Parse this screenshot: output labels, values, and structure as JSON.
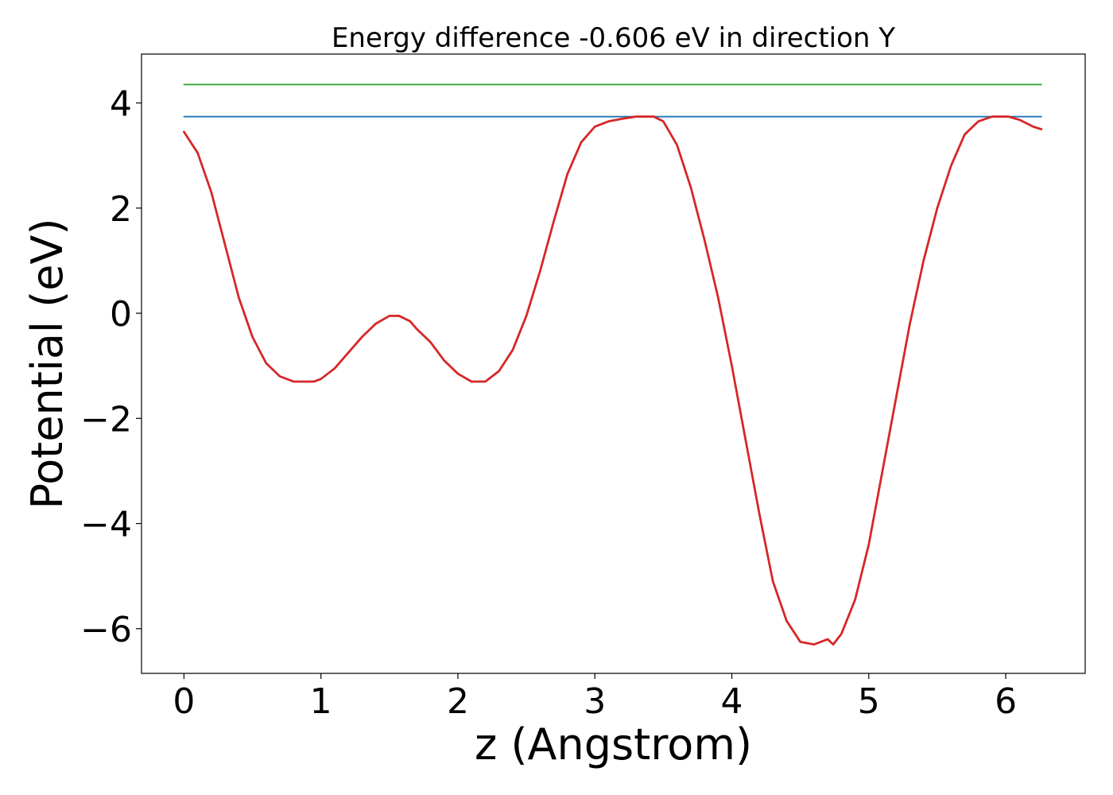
{
  "chart_data": {
    "type": "line",
    "title": "Energy difference -0.606 eV in direction Y",
    "xlabel": "z (Angstrom)",
    "ylabel": "Potential (eV)",
    "xlim": [
      -0.31,
      6.58
    ],
    "ylim": [
      -6.85,
      4.93
    ],
    "xticks": [
      0,
      1,
      2,
      3,
      4,
      5,
      6
    ],
    "yticks": [
      -6,
      -4,
      -2,
      0,
      2,
      4
    ],
    "xtick_labels": [
      "0",
      "1",
      "2",
      "3",
      "4",
      "5",
      "6"
    ],
    "ytick_labels": [
      "−6",
      "−4",
      "−2",
      "0",
      "2",
      "4"
    ],
    "grid": false,
    "legend": "none",
    "series": [
      {
        "color": "#d62728",
        "x": [
          0.0,
          0.1,
          0.2,
          0.3,
          0.4,
          0.5,
          0.6,
          0.7,
          0.8,
          0.9,
          0.95,
          1.0,
          1.1,
          1.2,
          1.3,
          1.4,
          1.5,
          1.57,
          1.65,
          1.7,
          1.8,
          1.9,
          2.0,
          2.1,
          2.2,
          2.3,
          2.4,
          2.5,
          2.6,
          2.7,
          2.8,
          2.9,
          3.0,
          3.1,
          3.2,
          3.3,
          3.43,
          3.5,
          3.6,
          3.7,
          3.8,
          3.9,
          4.0,
          4.1,
          4.2,
          4.3,
          4.4,
          4.5,
          4.6,
          4.7,
          4.74,
          4.8,
          4.9,
          5.0,
          5.1,
          5.2,
          5.3,
          5.4,
          5.5,
          5.6,
          5.7,
          5.8,
          5.9,
          6.0,
          6.02,
          6.1,
          6.2,
          6.26
        ],
        "y": [
          3.45,
          3.05,
          2.3,
          1.3,
          0.3,
          -0.45,
          -0.95,
          -1.2,
          -1.3,
          -1.3,
          -1.3,
          -1.25,
          -1.05,
          -0.75,
          -0.45,
          -0.2,
          -0.05,
          -0.05,
          -0.15,
          -0.3,
          -0.55,
          -0.9,
          -1.15,
          -1.3,
          -1.3,
          -1.1,
          -0.7,
          -0.05,
          0.8,
          1.75,
          2.65,
          3.25,
          3.55,
          3.65,
          3.7,
          3.74,
          3.74,
          3.65,
          3.2,
          2.4,
          1.4,
          0.3,
          -1.0,
          -2.4,
          -3.8,
          -5.1,
          -5.85,
          -6.25,
          -6.3,
          -6.2,
          -6.3,
          -6.1,
          -5.45,
          -4.4,
          -3.0,
          -1.6,
          -0.2,
          1.0,
          2.0,
          2.8,
          3.4,
          3.65,
          3.74,
          3.74,
          3.74,
          3.68,
          3.55,
          3.5
        ]
      },
      {
        "color": "#1f77b4",
        "x": [
          0.0,
          6.26
        ],
        "y": [
          3.74,
          3.74
        ]
      },
      {
        "color": "#2ca02c",
        "x": [
          0.0,
          6.26
        ],
        "y": [
          4.35,
          4.35
        ]
      }
    ]
  }
}
